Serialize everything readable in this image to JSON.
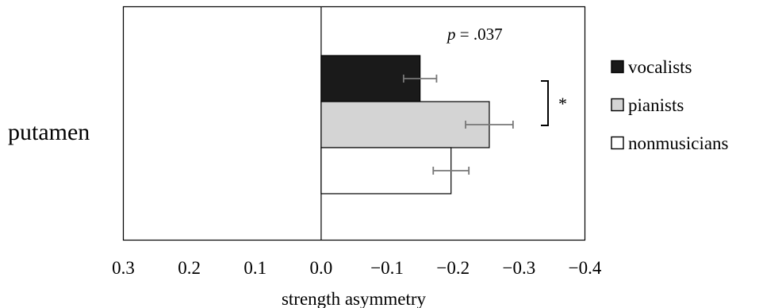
{
  "chart_data": {
    "type": "bar",
    "orientation": "horizontal",
    "category": "putamen",
    "xlabel": "strength asymmetry",
    "xlim": [
      0.3,
      -0.4
    ],
    "x_ticks": [
      0.3,
      0.2,
      0.1,
      0.0,
      -0.1,
      -0.2,
      -0.3,
      -0.4
    ],
    "x_tick_labels": [
      "0.3",
      "0.2",
      "0.1",
      "0.0",
      "−0.1",
      "−0.2",
      "−0.3",
      "−0.4"
    ],
    "grid": false,
    "legend_position": "right",
    "series": [
      {
        "name": "vocalists",
        "value": -0.15,
        "error": 0.025,
        "color": "#1a1a1a"
      },
      {
        "name": "pianists",
        "value": -0.255,
        "error": 0.036,
        "color": "#d4d4d4"
      },
      {
        "name": "nonmusicians",
        "value": -0.197,
        "error": 0.027,
        "color": "#ffffff"
      }
    ],
    "annotations": {
      "p_label": "p",
      "p_text": " = .037",
      "significance": "*"
    }
  }
}
